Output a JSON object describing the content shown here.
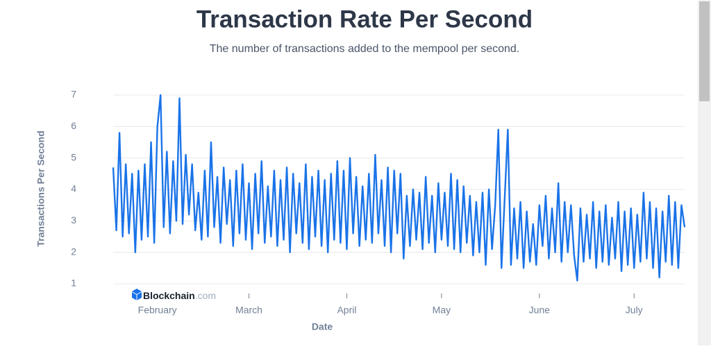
{
  "chart_data": {
    "type": "line",
    "title": "Transaction Rate Per Second",
    "subtitle": "The number of transactions added to the mempool per second.",
    "y_label": "Transactions Per Second",
    "x_label": "Date",
    "watermark": {
      "brand": "Blockchain",
      "domain": ".com"
    },
    "color": "#1a73e8",
    "ylim": [
      1,
      7
    ],
    "yticks": [
      1,
      2,
      3,
      4,
      5,
      6,
      7
    ],
    "grid": true,
    "categories": [
      null,
      null,
      null,
      null,
      null,
      null,
      null,
      null,
      null,
      null,
      null,
      null,
      null,
      null,
      "February",
      null,
      null,
      null,
      null,
      null,
      null,
      null,
      null,
      null,
      null,
      null,
      null,
      null,
      null,
      null,
      null,
      null,
      null,
      null,
      null,
      null,
      null,
      null,
      null,
      null,
      null,
      null,
      null,
      "March",
      null,
      null,
      null,
      null,
      null,
      null,
      null,
      null,
      null,
      null,
      null,
      null,
      null,
      null,
      null,
      null,
      null,
      null,
      null,
      null,
      null,
      null,
      null,
      null,
      null,
      null,
      null,
      null,
      null,
      null,
      "April",
      null,
      null,
      null,
      null,
      null,
      null,
      null,
      null,
      null,
      null,
      null,
      null,
      null,
      null,
      null,
      null,
      null,
      null,
      null,
      null,
      null,
      null,
      null,
      null,
      null,
      null,
      null,
      null,
      null,
      "May",
      null,
      null,
      null,
      null,
      null,
      null,
      null,
      null,
      null,
      null,
      null,
      null,
      null,
      null,
      null,
      null,
      null,
      null,
      null,
      null,
      null,
      null,
      null,
      null,
      null,
      null,
      null,
      null,
      null,
      null,
      "June",
      null,
      null,
      null,
      null,
      null,
      null,
      null,
      null,
      null,
      null,
      null,
      null,
      null,
      null,
      null,
      null,
      null,
      null,
      null,
      null,
      null,
      null,
      null,
      null,
      null,
      null,
      null,
      null,
      null,
      "July",
      null,
      null,
      null,
      null,
      null,
      null,
      null,
      null,
      null,
      null,
      null,
      null,
      null,
      null,
      null,
      null
    ],
    "values": [
      4.7,
      2.7,
      5.8,
      2.5,
      4.8,
      2.6,
      4.5,
      2.0,
      4.6,
      2.4,
      4.8,
      2.5,
      5.5,
      2.3,
      6.0,
      7.0,
      2.8,
      5.2,
      2.6,
      4.9,
      3.0,
      6.9,
      2.9,
      5.1,
      3.2,
      4.8,
      2.7,
      3.9,
      2.4,
      4.6,
      2.5,
      5.5,
      2.8,
      4.4,
      2.3,
      4.7,
      2.9,
      4.3,
      2.2,
      4.6,
      2.6,
      4.8,
      2.4,
      4.2,
      2.1,
      4.5,
      2.6,
      4.9,
      2.3,
      4.1,
      2.5,
      4.6,
      2.2,
      4.3,
      2.4,
      4.7,
      2.0,
      4.5,
      2.6,
      4.2,
      2.3,
      4.8,
      2.1,
      4.4,
      2.5,
      4.6,
      2.2,
      4.3,
      2.0,
      4.5,
      2.4,
      4.9,
      2.3,
      4.6,
      2.1,
      5.0,
      2.6,
      4.4,
      2.2,
      4.1,
      2.4,
      4.5,
      2.3,
      5.1,
      2.6,
      4.3,
      2.2,
      4.7,
      2.0,
      4.6,
      2.6,
      4.5,
      1.8,
      3.8,
      2.2,
      4.0,
      2.4,
      3.9,
      2.1,
      4.4,
      2.3,
      3.8,
      2.0,
      4.2,
      2.4,
      3.9,
      2.2,
      4.5,
      2.1,
      4.3,
      2.0,
      4.1,
      2.3,
      3.8,
      1.9,
      3.6,
      2.0,
      3.9,
      1.6,
      4.0,
      2.1,
      3.5,
      5.9,
      1.5,
      3.7,
      5.9,
      1.6,
      3.4,
      1.8,
      3.6,
      1.5,
      3.3,
      1.7,
      2.9,
      1.6,
      3.5,
      2.2,
      3.8,
      1.8,
      3.4,
      2.0,
      4.2,
      1.7,
      3.6,
      2.0,
      3.5,
      1.9,
      1.1,
      3.4,
      1.7,
      3.2,
      1.8,
      3.6,
      1.5,
      3.3,
      1.7,
      3.5,
      1.6,
      3.1,
      1.8,
      3.6,
      1.4,
      3.3,
      1.6,
      3.4,
      1.5,
      3.2,
      1.7,
      3.9,
      1.8,
      3.6,
      1.5,
      3.4,
      1.2,
      3.3,
      1.7,
      3.8,
      1.6,
      3.6,
      1.5,
      3.5,
      2.8
    ]
  }
}
